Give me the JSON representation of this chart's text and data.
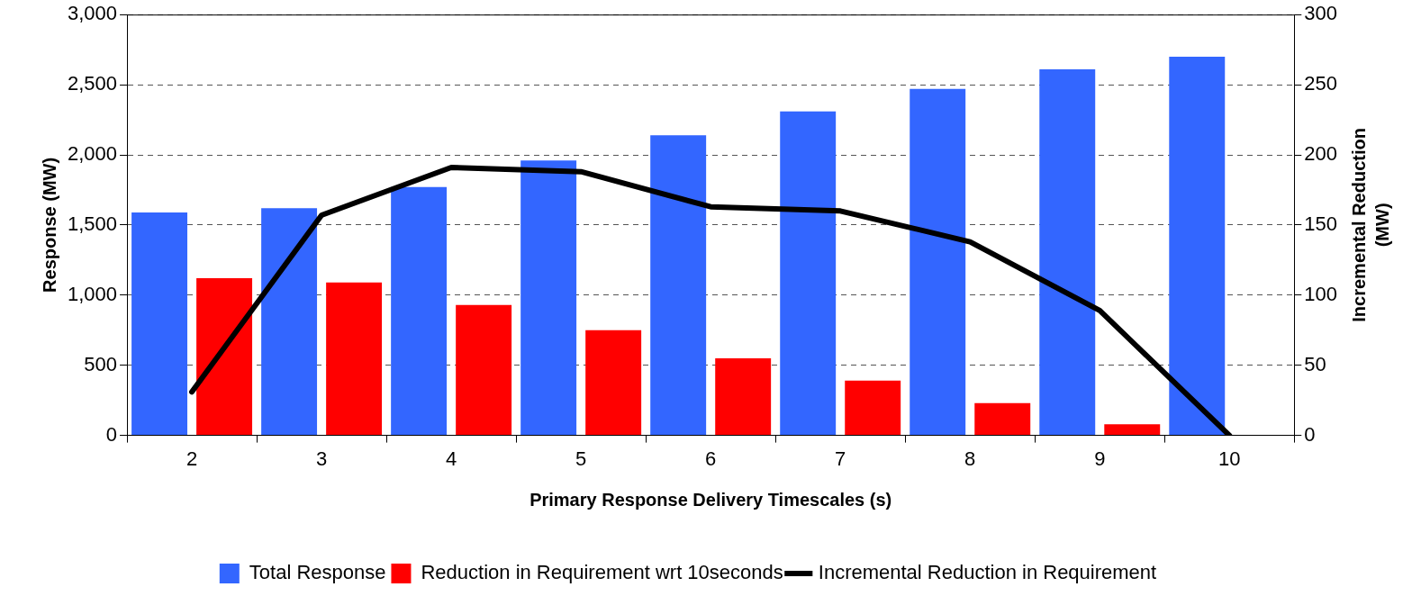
{
  "chart_data": {
    "type": "bar",
    "xlabel": "Primary Response Delivery Timescales (s)",
    "ylabel": "Response (MW)",
    "y2label": "Incremental Reduction (MW)",
    "categories": [
      "2",
      "3",
      "4",
      "5",
      "6",
      "7",
      "8",
      "9",
      "10"
    ],
    "series": [
      {
        "name": "Total Response",
        "color": "#3366ff",
        "values": [
          1590,
          1620,
          1770,
          1960,
          2140,
          2310,
          2470,
          2610,
          2700
        ]
      },
      {
        "name": "Reduction in Requirement wrt 10seconds",
        "color": "#ff0000",
        "values": [
          1120,
          1090,
          930,
          750,
          550,
          390,
          230,
          80,
          0
        ]
      },
      {
        "name": "Incremental Reduction in Requirement",
        "type": "line",
        "axis": "y2",
        "color": "#000000",
        "values": [
          31,
          157,
          191,
          188,
          163,
          160,
          138,
          89,
          0
        ]
      }
    ],
    "ylim": [
      0,
      3000
    ],
    "yticks": [
      0,
      500,
      {
        "value": 1000,
        "label": "1,000"
      },
      {
        "value": 1500,
        "label": "1,500"
      },
      {
        "value": 2000,
        "label": "2,000"
      },
      {
        "value": 2500,
        "label": "2,500"
      },
      {
        "value": 3000,
        "label": "3,000"
      }
    ],
    "y2lim": [
      0,
      300
    ],
    "y2ticks": [
      0,
      50,
      100,
      150,
      200,
      250,
      300
    ],
    "grid": "y",
    "legend": "bottom",
    "marker": "none",
    "line_style": "solid"
  }
}
